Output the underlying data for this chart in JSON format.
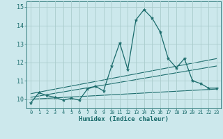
{
  "xlabel": "Humidex (Indice chaleur)",
  "background_color": "#cce8ec",
  "grid_color": "#aacccc",
  "line_color": "#1a6b6b",
  "xlim": [
    -0.5,
    23.5
  ],
  "ylim": [
    9.5,
    15.3
  ],
  "yticks": [
    10,
    11,
    12,
    13,
    14,
    15
  ],
  "xticks": [
    0,
    1,
    2,
    3,
    4,
    5,
    6,
    7,
    8,
    9,
    10,
    11,
    12,
    13,
    14,
    15,
    16,
    17,
    18,
    19,
    20,
    21,
    22,
    23
  ],
  "line1_x": [
    0,
    1,
    2,
    3,
    4,
    5,
    6,
    7,
    8,
    9,
    10,
    11,
    12,
    13,
    14,
    15,
    16,
    17,
    18,
    19,
    20,
    21,
    22,
    23
  ],
  "line1_y": [
    9.8,
    10.35,
    10.2,
    10.1,
    9.95,
    10.05,
    9.95,
    10.55,
    10.7,
    10.45,
    11.8,
    13.05,
    11.6,
    14.3,
    14.85,
    14.4,
    13.65,
    12.2,
    11.7,
    12.2,
    11.0,
    10.85,
    10.6,
    10.6
  ],
  "line2_x": [
    0,
    23
  ],
  "line2_y": [
    10.1,
    11.8
  ],
  "line3_x": [
    0,
    23
  ],
  "line3_y": [
    10.3,
    12.2
  ],
  "line4_x": [
    0,
    23
  ],
  "line4_y": [
    10.0,
    10.55
  ]
}
